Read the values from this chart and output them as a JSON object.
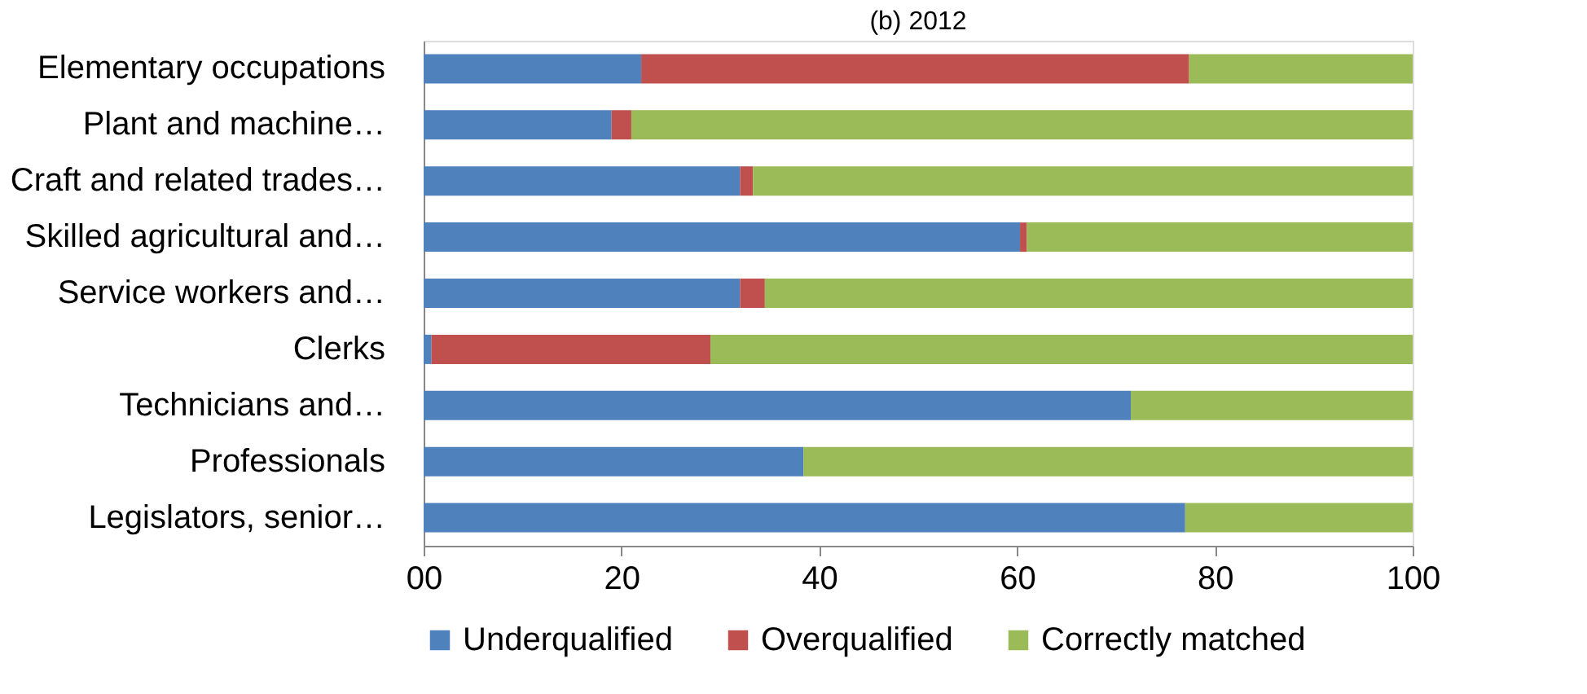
{
  "chart_data": {
    "type": "bar",
    "orientation": "horizontal",
    "stacked": true,
    "title": "(b) 2012",
    "categories": [
      "Elementary occupations",
      "Plant and machine…",
      "Craft and related trades…",
      "Skilled agricultural and…",
      "Service workers and…",
      "Clerks",
      "Technicians and…",
      "Professionals",
      "Legislators, senior…"
    ],
    "series": [
      {
        "name": "Underqualified",
        "color": "#4f81bd",
        "values": [
          22,
          19,
          32,
          60.3,
          32,
          0.8,
          71.5,
          38.4,
          77
        ]
      },
      {
        "name": "Overqualified",
        "color": "#c0504d",
        "values": [
          55.4,
          2,
          1.3,
          0.7,
          2.5,
          28.2,
          0,
          0,
          0
        ]
      },
      {
        "name": "Correctly matched",
        "color": "#9bbb59",
        "values": [
          22.6,
          79,
          66.7,
          39,
          65.5,
          71,
          28.5,
          61.6,
          23
        ]
      }
    ],
    "xlim": [
      0,
      100
    ],
    "xticks": [
      {
        "value": 0,
        "label": "00"
      },
      20,
      40,
      60,
      80,
      100
    ],
    "grid": false,
    "legend": "bottom"
  }
}
